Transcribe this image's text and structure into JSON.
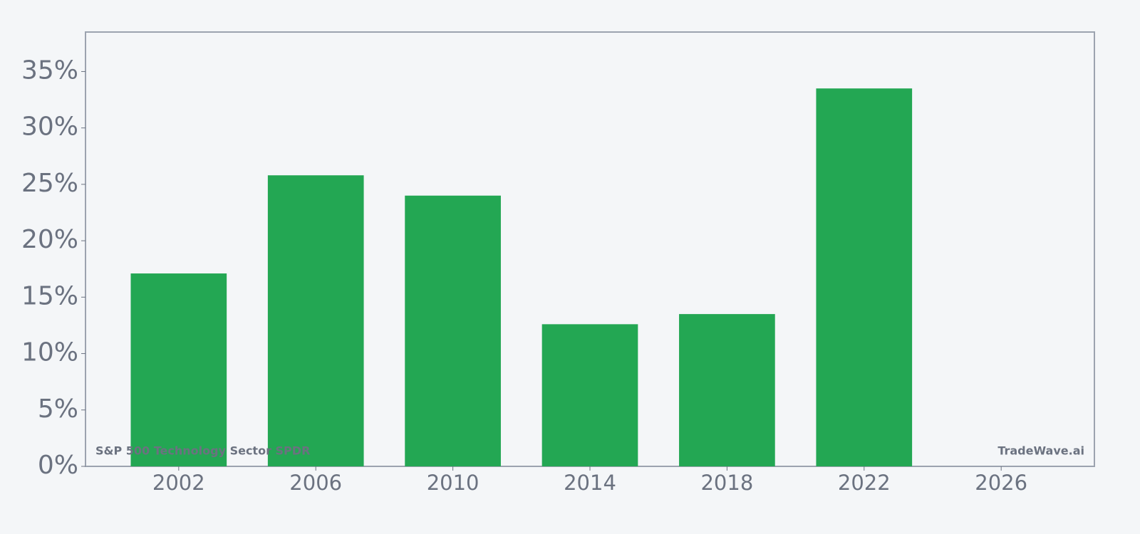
{
  "chart_data": {
    "type": "bar",
    "x": [
      2002,
      2006,
      2010,
      2014,
      2018,
      2022
    ],
    "values": [
      17.1,
      25.8,
      24.0,
      12.6,
      13.5,
      33.5
    ],
    "color": "#23a753",
    "xlim": [
      1999.28,
      2028.72
    ],
    "xticks": [
      2002,
      2006,
      2010,
      2014,
      2018,
      2022,
      2026
    ],
    "ylim": [
      0,
      38.5
    ],
    "yticks": [
      {
        "value": 0,
        "label": "0%"
      },
      {
        "value": 5,
        "label": "5%"
      },
      {
        "value": 10,
        "label": "10%"
      },
      {
        "value": 15,
        "label": "15%"
      },
      {
        "value": 20,
        "label": "20%"
      },
      {
        "value": 25,
        "label": "25%"
      },
      {
        "value": 30,
        "label": "30%"
      },
      {
        "value": 35,
        "label": "35%"
      }
    ],
    "annotations": [
      "S&P 500 Technology Sector SPDR",
      "TradeWave.ai"
    ]
  }
}
